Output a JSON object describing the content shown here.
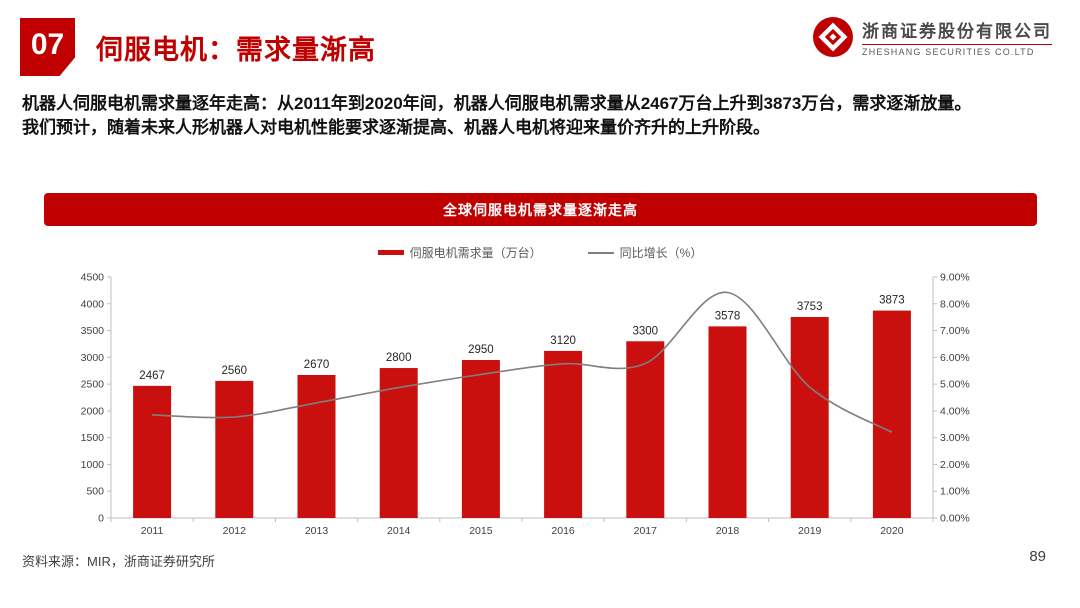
{
  "header": {
    "number": "07",
    "title": "伺服电机：需求量渐高"
  },
  "logo": {
    "company_cn": "浙商证券股份有限公司",
    "company_en": "ZHESHANG SECURITIES CO.LTD"
  },
  "summary": {
    "line1": "机器人伺服电机需求量逐年走高：从2011年到2020年间，机器人伺服电机需求量从2467万台上升到3873万台，需求逐渐放量。",
    "line2": "我们预计，随着未来人形机器人对电机性能要求逐渐提高、机器人电机将迎来量价齐升的上升阶段。"
  },
  "chart_data": {
    "type": "bar",
    "title": "全球伺服电机需求量逐渐走高",
    "categories": [
      "2011",
      "2012",
      "2013",
      "2014",
      "2015",
      "2016",
      "2017",
      "2018",
      "2019",
      "2020"
    ],
    "series": [
      {
        "name": "伺服电机需求量（万台）",
        "type": "bar",
        "axis": "left",
        "color": "#C9100E",
        "values": [
          2467,
          2560,
          2670,
          2800,
          2950,
          3120,
          3300,
          3578,
          3753,
          3873
        ],
        "data_labels": true
      },
      {
        "name": "同比增长（%）",
        "type": "line",
        "axis": "right",
        "color": "#7F7F7F",
        "values": [
          3.85,
          3.77,
          4.3,
          4.87,
          5.36,
          5.76,
          5.77,
          8.42,
          4.89,
          3.2
        ],
        "data_labels": false
      }
    ],
    "left_axis": {
      "min": 0,
      "max": 4500,
      "step": 500,
      "format": "int"
    },
    "right_axis": {
      "min": 0,
      "max": 9,
      "step": 1,
      "format": "percent2"
    },
    "grid": false,
    "legend_position": "top"
  },
  "footer": {
    "source": "资料来源：MIR，浙商证券研究所",
    "page": "89"
  },
  "colors": {
    "accent_red": "#C00000",
    "bar_red": "#C9100E",
    "line_gray": "#7F7F7F",
    "axis_gray": "#BFBFBF",
    "text_dark": "#404040"
  }
}
